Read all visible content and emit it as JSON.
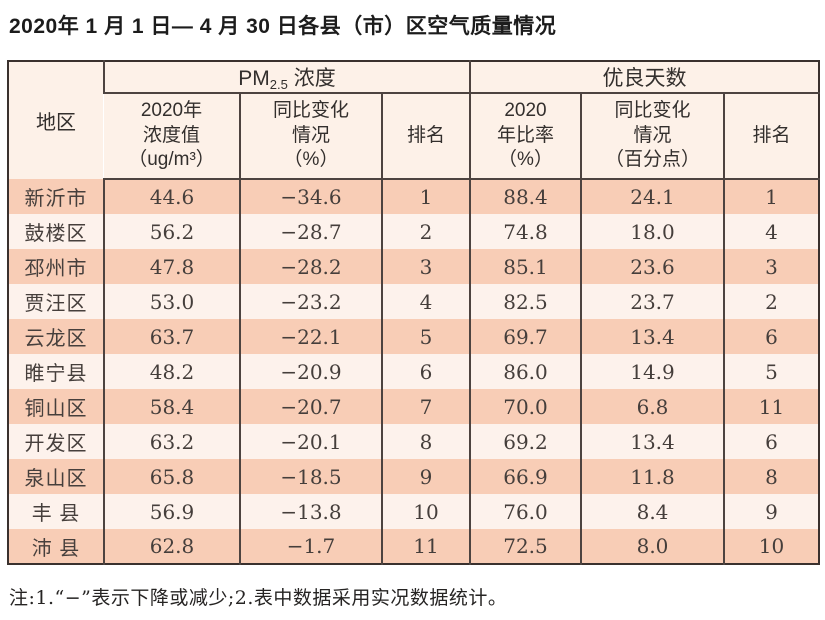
{
  "title": "2020年 1 月 1 日— 4 月 30 日各县（市）区空气质量情况",
  "table": {
    "region_header": "地区",
    "group_headers": {
      "pm25_prefix": "PM",
      "pm25_sub": "2.5",
      "pm25_suffix": " 浓度",
      "good_days": "优良天数"
    },
    "sub_headers": {
      "pm_value": "2020年\n浓度值\n（ug/m³）",
      "pm_change": "同比变化\n情况\n（%）",
      "pm_rank": "排名",
      "good_rate": "2020\n年比率\n（%）",
      "good_change": "同比变化\n情况\n（百分点）",
      "good_rank": "排名"
    },
    "rows": [
      {
        "region": "新沂市",
        "pm_value": "44.6",
        "pm_change": "−34.6",
        "pm_rank": "1",
        "good_rate": "88.4",
        "good_change": "24.1",
        "good_rank": "1"
      },
      {
        "region": "鼓楼区",
        "pm_value": "56.2",
        "pm_change": "−28.7",
        "pm_rank": "2",
        "good_rate": "74.8",
        "good_change": "18.0",
        "good_rank": "4"
      },
      {
        "region": "邳州市",
        "pm_value": "47.8",
        "pm_change": "−28.2",
        "pm_rank": "3",
        "good_rate": "85.1",
        "good_change": "23.6",
        "good_rank": "3"
      },
      {
        "region": "贾汪区",
        "pm_value": "53.0",
        "pm_change": "−23.2",
        "pm_rank": "4",
        "good_rate": "82.5",
        "good_change": "23.7",
        "good_rank": "2"
      },
      {
        "region": "云龙区",
        "pm_value": "63.7",
        "pm_change": "−22.1",
        "pm_rank": "5",
        "good_rate": "69.7",
        "good_change": "13.4",
        "good_rank": "6"
      },
      {
        "region": "睢宁县",
        "pm_value": "48.2",
        "pm_change": "−20.9",
        "pm_rank": "6",
        "good_rate": "86.0",
        "good_change": "14.9",
        "good_rank": "5"
      },
      {
        "region": "铜山区",
        "pm_value": "58.4",
        "pm_change": "−20.7",
        "pm_rank": "7",
        "good_rate": "70.0",
        "good_change": "6.8",
        "good_rank": "11"
      },
      {
        "region": "开发区",
        "pm_value": "63.2",
        "pm_change": "−20.1",
        "pm_rank": "8",
        "good_rate": "69.2",
        "good_change": "13.4",
        "good_rank": "6"
      },
      {
        "region": "泉山区",
        "pm_value": "65.8",
        "pm_change": "−18.5",
        "pm_rank": "9",
        "good_rate": "66.9",
        "good_change": "11.8",
        "good_rank": "8"
      },
      {
        "region": "丰 县",
        "pm_value": "56.9",
        "pm_change": "−13.8",
        "pm_rank": "10",
        "good_rate": "76.0",
        "good_change": "8.4",
        "good_rank": "9"
      },
      {
        "region": "沛 县",
        "pm_value": "62.8",
        "pm_change": "−1.7",
        "pm_rank": "11",
        "good_rate": "72.5",
        "good_change": "8.0",
        "good_rank": "10"
      }
    ]
  },
  "footnote": "注:1.“−”表示下降或减少;2.表中数据采用实况数据统计。",
  "colors": {
    "row_odd": "#f8cdb6",
    "row_even": "#fdf2ec",
    "header_bg": "#fdf1e8",
    "border_inner": "#4d4340",
    "border_outer": "#3a312e"
  }
}
